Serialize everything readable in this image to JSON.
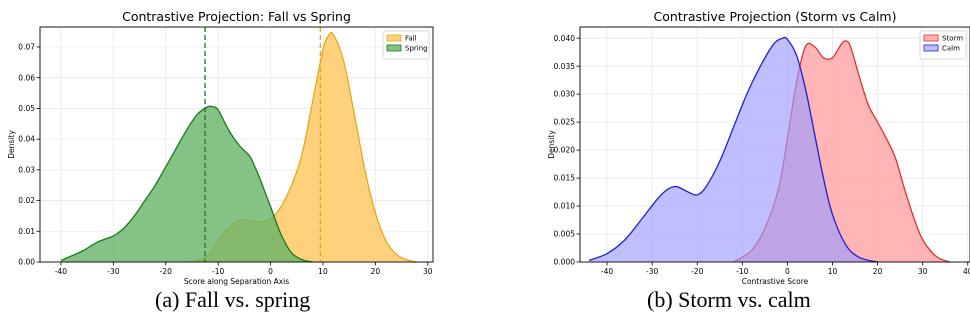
{
  "captions": [
    "(a) Fall vs. spring",
    "(b) Storm vs. calm"
  ],
  "colors": {
    "fall_fill": "#ffc966",
    "fall_line": "#e6a817",
    "spring_fill": "#66b366",
    "spring_line": "#1a7a1a",
    "storm_fill": "#ff9c9c",
    "storm_line": "#e03030",
    "calm_fill": "#9c9cff",
    "calm_line": "#2020d0",
    "grid": "#e8e8e8"
  },
  "chart_data": [
    {
      "type": "area",
      "title": "Contrastive Projection: Fall vs Spring",
      "xlabel": "Score along Separation Axis",
      "ylabel": "Density",
      "xlim": [
        -44,
        31
      ],
      "ylim": [
        0,
        0.0765
      ],
      "xticks": [
        -40,
        -30,
        -20,
        -10,
        0,
        10,
        20,
        30
      ],
      "yticks": [
        0.0,
        0.01,
        0.02,
        0.03,
        0.04,
        0.05,
        0.06,
        0.07
      ],
      "tick_decimals": 2,
      "grid": true,
      "legend_position": "top-right",
      "vlines": [
        {
          "x": -12.5,
          "series": "Spring"
        },
        {
          "x": 9.5,
          "series": "Fall"
        }
      ],
      "series": [
        {
          "name": "Fall",
          "x": [
            -15,
            -12,
            -10,
            -8,
            -6,
            -4,
            -2,
            0,
            2,
            4,
            6,
            8,
            10,
            11,
            12,
            14,
            16,
            18,
            20,
            22,
            24,
            26,
            28
          ],
          "y": [
            0.0,
            0.002,
            0.007,
            0.011,
            0.0135,
            0.0135,
            0.013,
            0.014,
            0.018,
            0.025,
            0.035,
            0.052,
            0.069,
            0.0735,
            0.074,
            0.065,
            0.048,
            0.03,
            0.016,
            0.007,
            0.0025,
            0.0007,
            0.0
          ]
        },
        {
          "name": "Spring",
          "x": [
            -40,
            -36,
            -33,
            -30,
            -28,
            -26,
            -24,
            -22,
            -20,
            -18,
            -16,
            -14,
            -12,
            -11,
            -10,
            -8,
            -6,
            -4,
            -3,
            -2,
            0,
            2,
            4,
            6,
            8
          ],
          "y": [
            0.0005,
            0.0035,
            0.0065,
            0.0085,
            0.011,
            0.015,
            0.02,
            0.025,
            0.031,
            0.037,
            0.043,
            0.048,
            0.0505,
            0.0505,
            0.0495,
            0.043,
            0.038,
            0.0345,
            0.031,
            0.027,
            0.018,
            0.009,
            0.003,
            0.0008,
            0.0
          ]
        }
      ]
    },
    {
      "type": "area",
      "title": "Contrastive Projection (Storm vs Calm)",
      "xlabel": "Contrastive Score",
      "ylabel": "Density",
      "xlim": [
        -46,
        40.5
      ],
      "ylim": [
        0,
        0.042
      ],
      "xticks": [
        -40,
        -30,
        -20,
        -10,
        0,
        10,
        20,
        30,
        40
      ],
      "yticks": [
        0.0,
        0.005,
        0.01,
        0.015,
        0.02,
        0.025,
        0.03,
        0.035,
        0.04
      ],
      "tick_decimals": 3,
      "grid": true,
      "legend_position": "top-right",
      "series": [
        {
          "name": "Storm",
          "x": [
            -12,
            -8,
            -5,
            -2,
            0,
            2,
            4,
            6,
            8,
            10,
            12,
            13,
            14,
            16,
            18,
            20,
            22,
            24,
            26,
            28,
            30,
            33,
            36
          ],
          "y": [
            0.0,
            0.002,
            0.006,
            0.013,
            0.022,
            0.032,
            0.0385,
            0.0385,
            0.0365,
            0.0365,
            0.039,
            0.0395,
            0.0385,
            0.033,
            0.028,
            0.025,
            0.022,
            0.0185,
            0.013,
            0.008,
            0.004,
            0.001,
            0.0
          ]
        },
        {
          "name": "Calm",
          "x": [
            -44,
            -40,
            -36,
            -32,
            -28,
            -25,
            -22,
            -20,
            -18,
            -15,
            -12,
            -9,
            -6,
            -3,
            -1,
            0,
            2,
            4,
            6,
            8,
            10,
            13,
            16,
            20
          ],
          "y": [
            0.0003,
            0.0015,
            0.004,
            0.008,
            0.012,
            0.0135,
            0.0125,
            0.012,
            0.0135,
            0.018,
            0.024,
            0.03,
            0.035,
            0.039,
            0.04,
            0.0398,
            0.037,
            0.031,
            0.023,
            0.015,
            0.0085,
            0.003,
            0.0008,
            0.0
          ]
        }
      ]
    }
  ]
}
